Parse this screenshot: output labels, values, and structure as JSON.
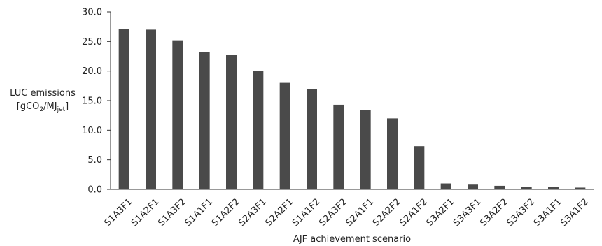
{
  "chart_data": {
    "type": "bar",
    "xlabel": "AJF achievement scenario",
    "ylabel": {
      "main": "LUC emissions",
      "unit_open": "[gCO",
      "unit_sub1": "2",
      "unit_mid": "/MJ",
      "unit_sub2": "jet",
      "unit_close": "]"
    },
    "ylim": [
      0,
      30
    ],
    "yticks": [
      "0.0",
      "5.0",
      "10.0",
      "15.0",
      "20.0",
      "25.0",
      "30.0"
    ],
    "grid": false,
    "bar_color": "#4a4a4a",
    "categories": [
      "S1A3F1",
      "S1A2F1",
      "S1A3F2",
      "S1A1F1",
      "S1A2F2",
      "S2A3F1",
      "S2A2F1",
      "S1A1F2",
      "S2A3F2",
      "S2A1F1",
      "S2A2F2",
      "S2A1F2",
      "S3A2F1",
      "S3A3F1",
      "S3A2F2",
      "S3A3F2",
      "S3A1F1",
      "S3A1F2"
    ],
    "values": [
      27.1,
      27.0,
      25.2,
      23.2,
      22.7,
      20.0,
      18.0,
      17.0,
      14.3,
      13.4,
      12.0,
      7.3,
      1.0,
      0.8,
      0.6,
      0.4,
      0.4,
      0.3
    ]
  }
}
